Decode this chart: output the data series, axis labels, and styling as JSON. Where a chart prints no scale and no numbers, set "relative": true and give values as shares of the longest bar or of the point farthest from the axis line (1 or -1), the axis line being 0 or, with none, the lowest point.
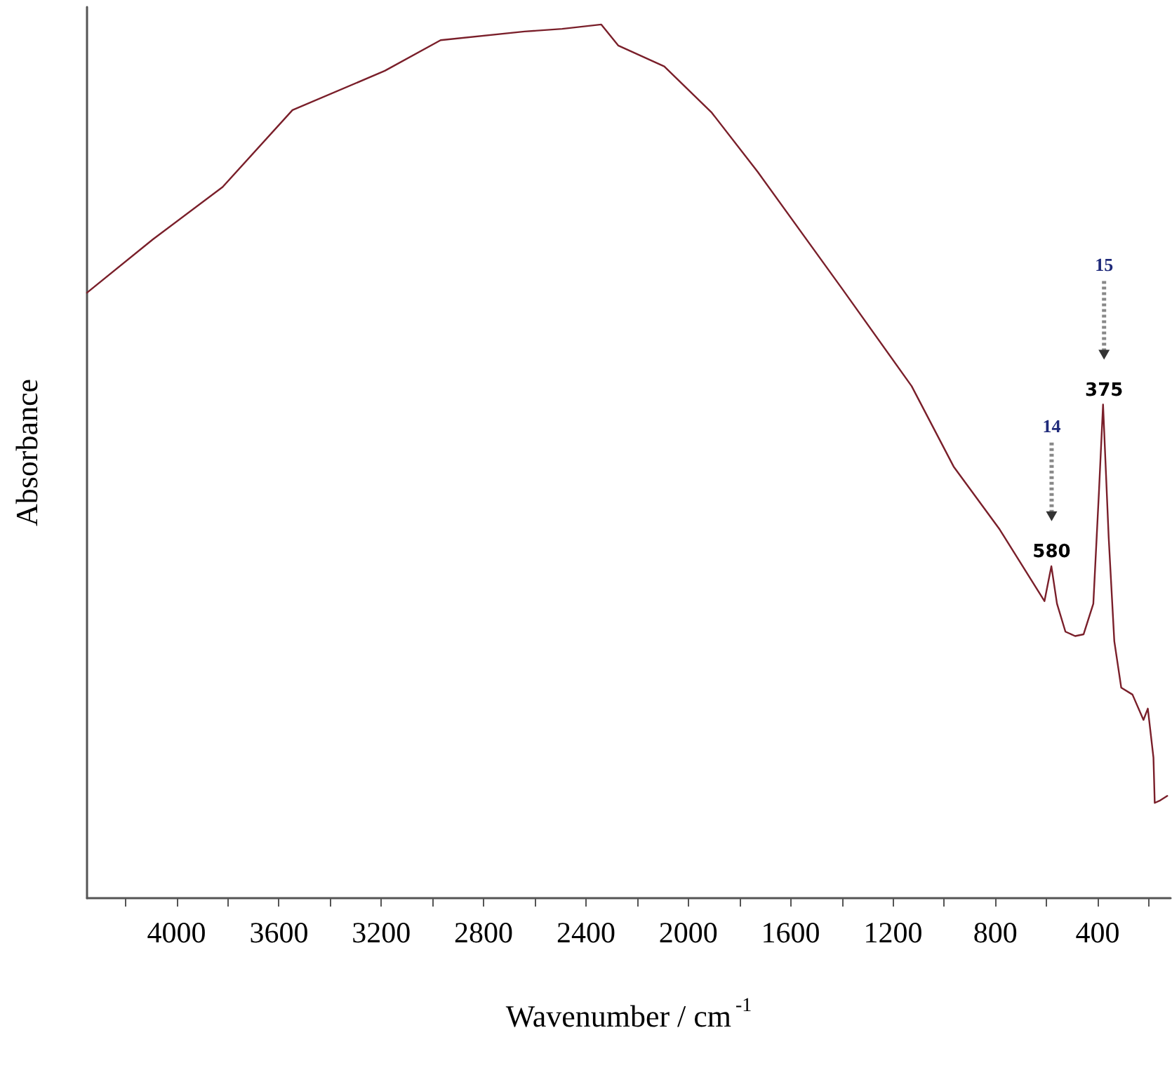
{
  "chart_data": {
    "type": "line",
    "relative": true,
    "xlabel": "Wavenumber / cm$^{-1}$",
    "ylabel": "Absorbance",
    "xlim": [
      4350,
      115
    ],
    "xticks": [
      {
        "value": 4200,
        "label": null
      },
      4000,
      {
        "value": 3800,
        "label": null
      },
      3600,
      {
        "value": 3400,
        "label": null
      },
      3200,
      {
        "value": 3000,
        "label": null
      },
      2800,
      {
        "value": 2600,
        "label": null
      },
      2400,
      {
        "value": 2200,
        "label": null
      },
      2000,
      {
        "value": 1800,
        "label": null
      },
      1600,
      {
        "value": 1400,
        "label": null
      },
      1200,
      {
        "value": 1000,
        "label": null
      },
      800,
      {
        "value": 600,
        "label": null
      },
      400,
      {
        "value": 200,
        "label": null
      }
    ],
    "grid": false,
    "marker": "none",
    "line_style": "solid",
    "series": [
      {
        "color": "#7a1f2a",
        "x": [
          4350,
          4093,
          3820,
          3547,
          3186,
          2968,
          2640,
          2493,
          2340,
          2274,
          2094,
          1908,
          1728,
          1400,
          1127,
          963,
          783,
          608,
          581,
          559,
          526,
          488,
          455,
          417,
          395,
          379,
          357,
          335,
          308,
          264,
          221,
          204,
          182,
          177,
          155,
          128
        ],
        "values": [
          0.693,
          0.754,
          0.814,
          0.902,
          0.947,
          0.982,
          0.992,
          0.995,
          1,
          0.976,
          0.952,
          0.899,
          0.831,
          0.698,
          0.586,
          0.494,
          0.422,
          0.34,
          0.38,
          0.337,
          0.305,
          0.3,
          0.302,
          0.337,
          0.465,
          0.565,
          0.413,
          0.294,
          0.241,
          0.233,
          0.204,
          0.217,
          0.161,
          0.109,
          0.112,
          0.117
        ]
      }
    ],
    "annotations": [
      {
        "text": "580",
        "x": 580,
        "y": 0.38
      },
      "14",
      {
        "text": "375",
        "x": 375,
        "y": 0.565
      },
      "15"
    ]
  }
}
